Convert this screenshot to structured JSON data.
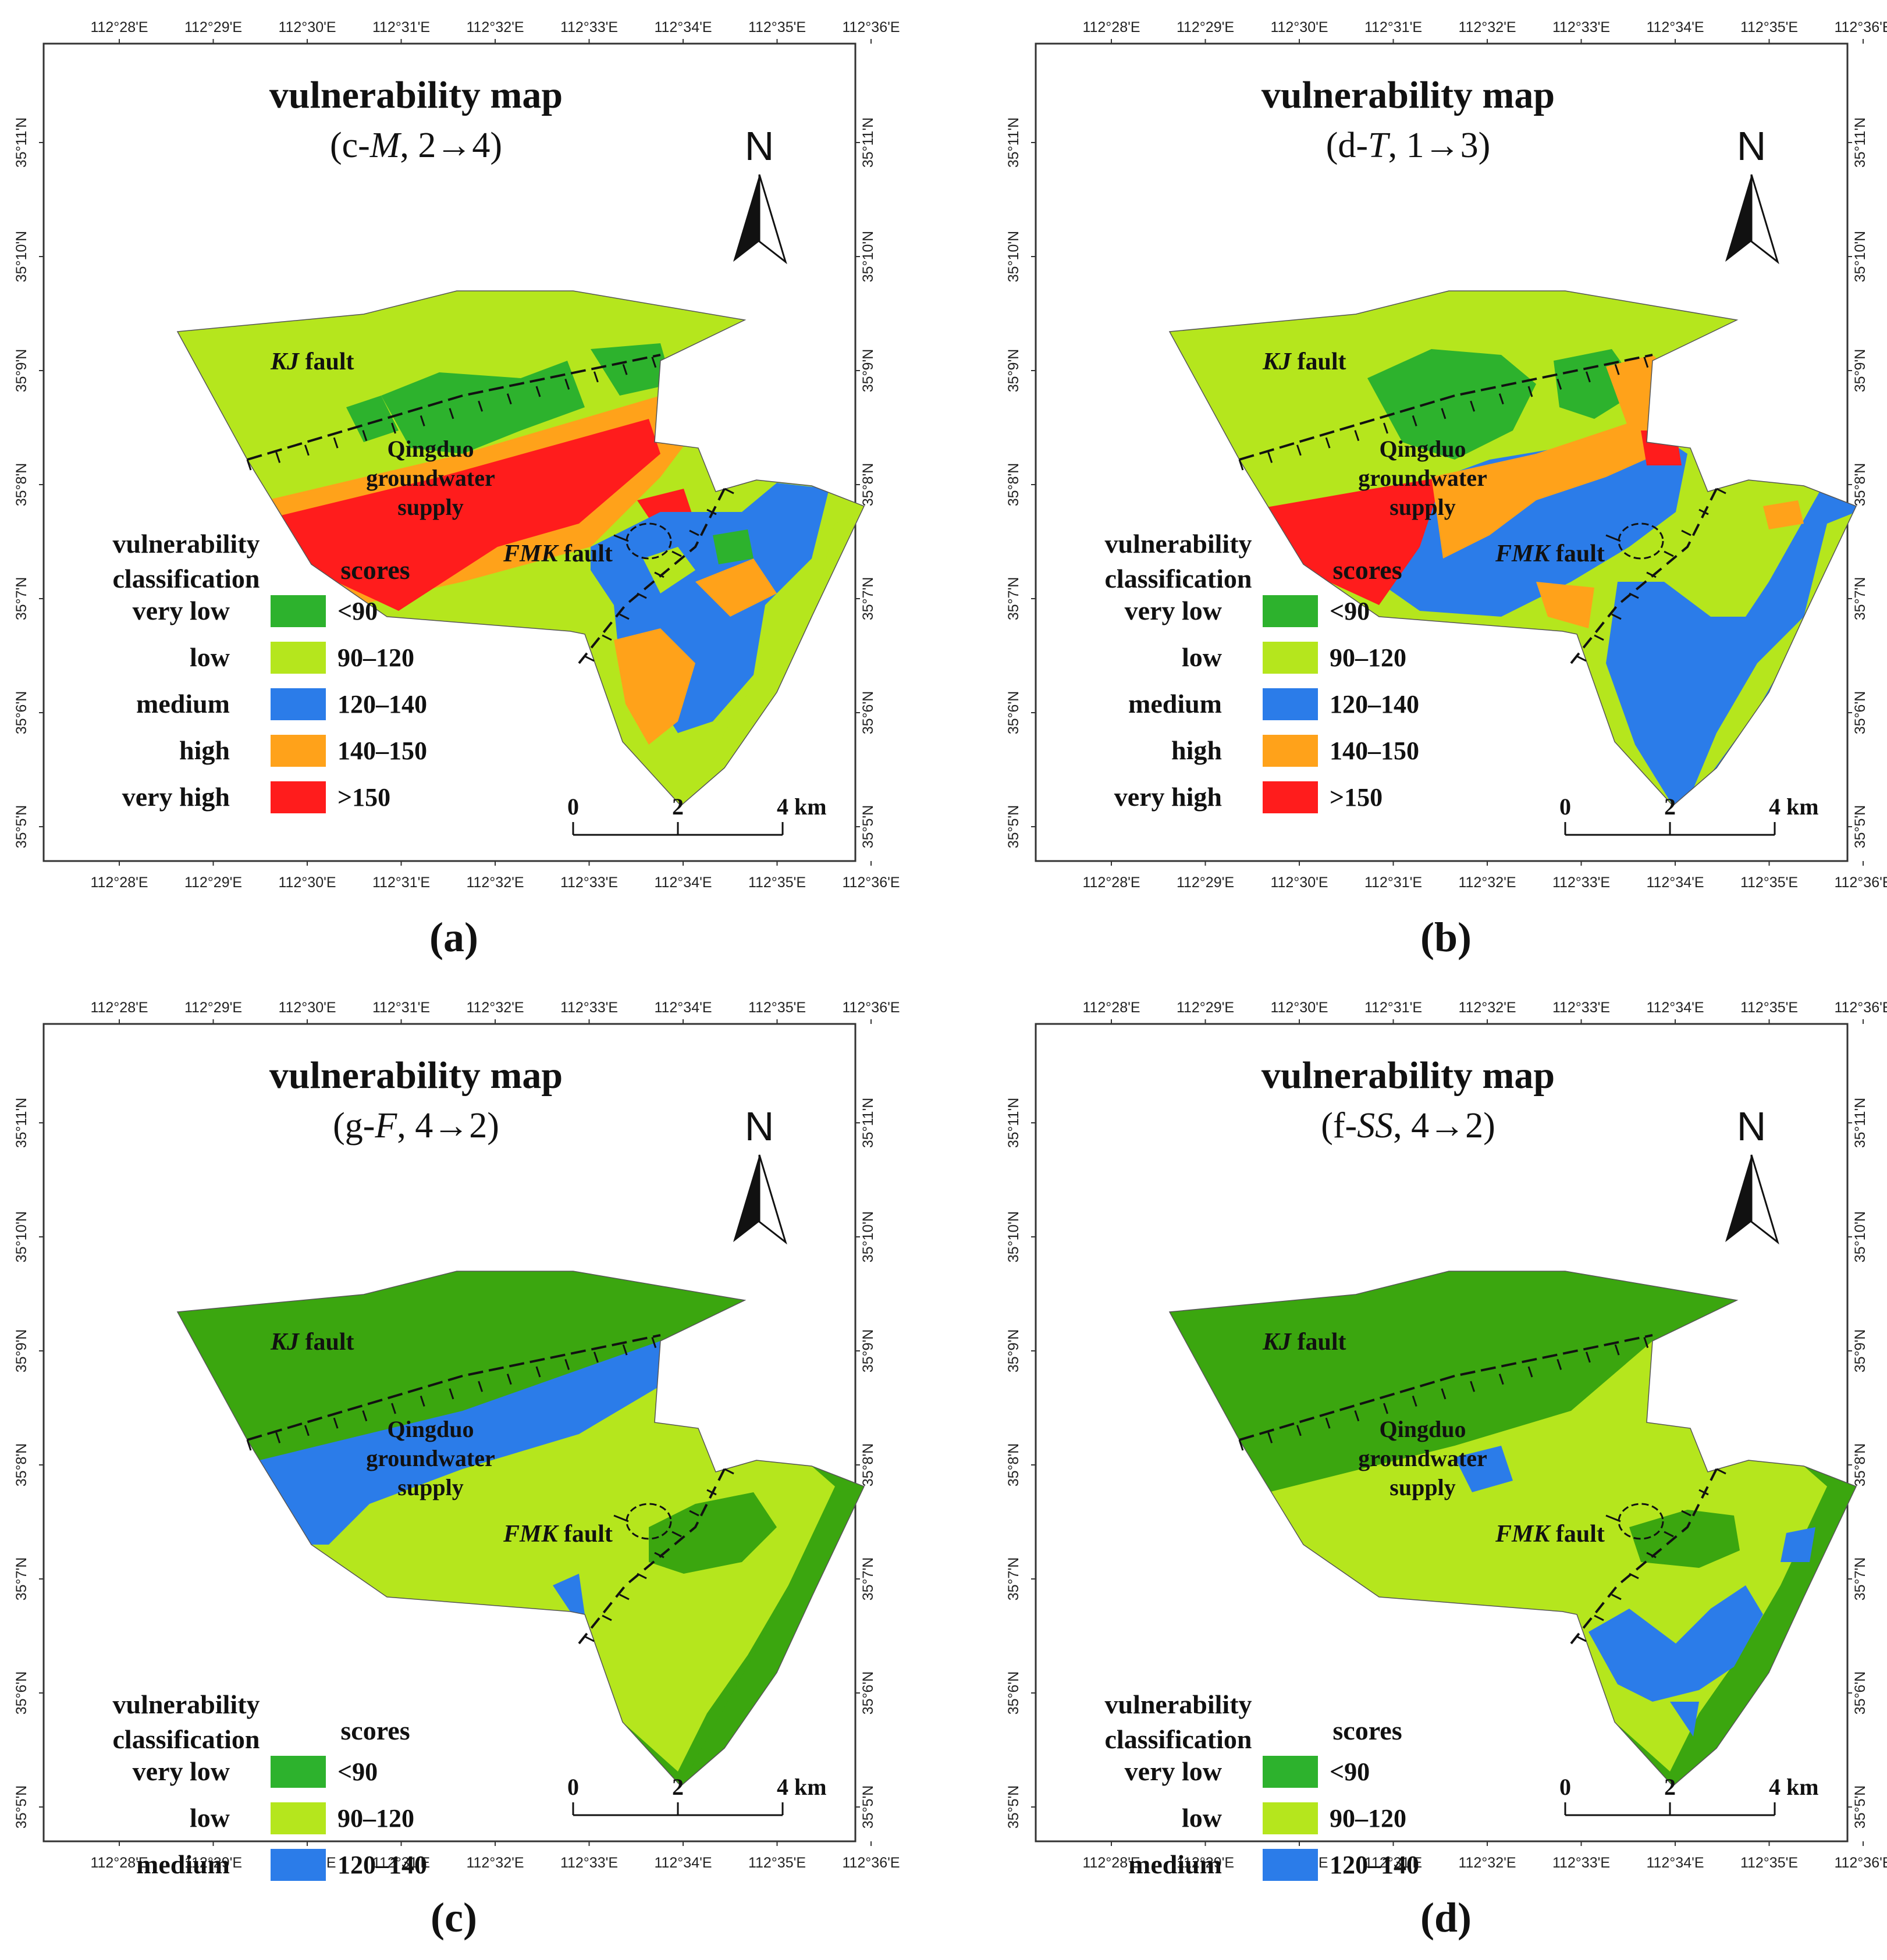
{
  "figure": {
    "x_ticks": [
      "112°28'E",
      "112°29'E",
      "112°30'E",
      "112°31'E",
      "112°32'E",
      "112°33'E",
      "112°34'E",
      "112°35'E",
      "112°36'E"
    ],
    "y_ticks": [
      "35°11'N",
      "35°10'N",
      "35°9'N",
      "35°8'N",
      "35°7'N",
      "35°6'N",
      "35°5'N"
    ],
    "map_title": "vulnerability map",
    "north_label": "N",
    "legend_heading": [
      "vulnerability",
      "classification"
    ],
    "scores_heading": "scores",
    "kj_fault": {
      "italic": "KJ",
      "rest": " fault"
    },
    "fmk_fault": {
      "italic": "FMK",
      "rest": " fault"
    },
    "groundwater": [
      "Qingduo",
      "groundwater",
      "supply"
    ],
    "scale_labels": [
      "0",
      "2",
      "4 km"
    ],
    "colors": {
      "very_low": "#2db22d",
      "low": "#b5e61d",
      "medium": "#2b7ce9",
      "high": "#ffa21a",
      "very_high": "#ff1c1c",
      "vl_dark": "#3ba60f"
    }
  },
  "panels": [
    {
      "label": "(a)",
      "subtitle": {
        "prefix": "(c-",
        "italic": "M",
        "suffix": ", 2→4)"
      },
      "legend": [
        {
          "cls": "very low",
          "score": "<90",
          "color": "#2db22d"
        },
        {
          "cls": "low",
          "score": "90–120",
          "color": "#b5e61d"
        },
        {
          "cls": "medium",
          "score": "120–140",
          "color": "#2b7ce9"
        },
        {
          "cls": "high",
          "score": "140–150",
          "color": "#ffa21a"
        },
        {
          "cls": "very high",
          "score": ">150",
          "color": "#ff1c1c"
        }
      ]
    },
    {
      "label": "(b)",
      "subtitle": {
        "prefix": "(d-",
        "italic": "T",
        "suffix": ", 1→3)"
      },
      "legend": [
        {
          "cls": "very low",
          "score": "<90",
          "color": "#2db22d"
        },
        {
          "cls": "low",
          "score": "90–120",
          "color": "#b5e61d"
        },
        {
          "cls": "medium",
          "score": "120–140",
          "color": "#2b7ce9"
        },
        {
          "cls": "high",
          "score": "140–150",
          "color": "#ffa21a"
        },
        {
          "cls": "very high",
          "score": ">150",
          "color": "#ff1c1c"
        }
      ]
    },
    {
      "label": "(c)",
      "subtitle": {
        "prefix": "(g-",
        "italic": "F",
        "suffix": ", 4→2)"
      },
      "legend": [
        {
          "cls": "very low",
          "score": "<90",
          "color": "#2db22d"
        },
        {
          "cls": "low",
          "score": "90–120",
          "color": "#b5e61d"
        },
        {
          "cls": "medium",
          "score": "120–140",
          "color": "#2b7ce9"
        }
      ]
    },
    {
      "label": "(d)",
      "subtitle": {
        "prefix": "(f-",
        "italic": "SS",
        "suffix": ", 4→2)"
      },
      "legend": [
        {
          "cls": "very low",
          "score": "<90",
          "color": "#2db22d"
        },
        {
          "cls": "low",
          "score": "90–120",
          "color": "#b5e61d"
        },
        {
          "cls": "medium",
          "score": "120–140",
          "color": "#2b7ce9"
        }
      ]
    }
  ]
}
